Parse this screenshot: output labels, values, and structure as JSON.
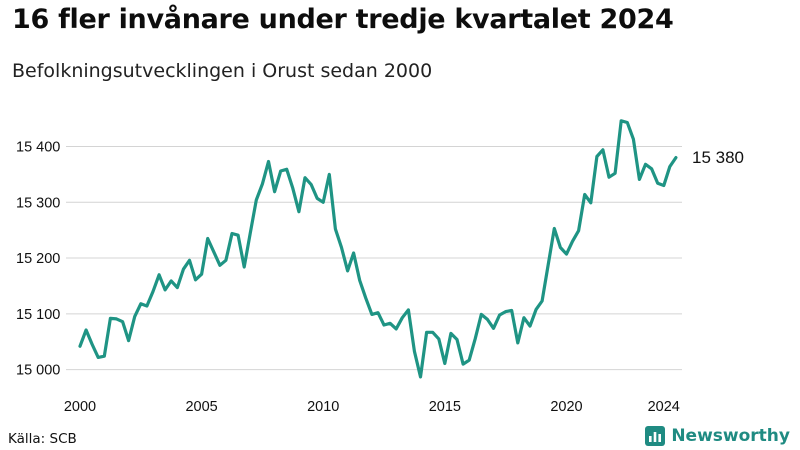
{
  "title": "16 fler invånare under tredje kvartalet 2024",
  "subtitle": "Befolkningsutvecklingen i Orust sedan 2000",
  "source": "Källa: SCB",
  "brand": {
    "name": "Newsworthy",
    "icon": "bar-chart-logo-icon",
    "color": "#1f8b82"
  },
  "chart_data": {
    "type": "line",
    "title": "16 fler invånare under tredje kvartalet 2024",
    "subtitle": "Befolkningsutvecklingen i Orust sedan 2000",
    "xlabel": "",
    "ylabel": "",
    "xlim": [
      2000,
      2024.75
    ],
    "ylim": [
      14985,
      15460
    ],
    "grid": true,
    "line_color": "#1f9484",
    "x_ticks": [
      {
        "value": 2000,
        "label": "2000"
      },
      {
        "value": 2005,
        "label": "2005"
      },
      {
        "value": 2010,
        "label": "2010"
      },
      {
        "value": 2015,
        "label": "2015"
      },
      {
        "value": 2020,
        "label": "2020"
      },
      {
        "value": 2024,
        "label": "2024"
      }
    ],
    "y_ticks": [
      {
        "value": 15000,
        "label": "15 000"
      },
      {
        "value": 15100,
        "label": "15 100"
      },
      {
        "value": 15200,
        "label": "15 200"
      },
      {
        "value": 15300,
        "label": "15 300"
      },
      {
        "value": 15400,
        "label": "15 400"
      }
    ],
    "end_label": "15 380",
    "series": [
      {
        "x": [
          2000,
          2000.25,
          2000.5,
          2000.75,
          2001,
          2001.25,
          2001.5,
          2001.75,
          2002,
          2002.25,
          2002.5,
          2002.75,
          2003,
          2003.25,
          2003.5,
          2003.75,
          2004,
          2004.25,
          2004.5,
          2004.75,
          2005,
          2005.25,
          2005.5,
          2005.75,
          2006,
          2006.25,
          2006.5,
          2006.75,
          2007,
          2007.25,
          2007.5,
          2007.75,
          2008,
          2008.25,
          2008.5,
          2008.75,
          2009,
          2009.25,
          2009.5,
          2009.75,
          2010,
          2010.25,
          2010.5,
          2010.75,
          2011,
          2011.25,
          2011.5,
          2011.75,
          2012,
          2012.25,
          2012.5,
          2012.75,
          2013,
          2013.25,
          2013.5,
          2013.75,
          2014,
          2014.25,
          2014.5,
          2014.75,
          2015,
          2015.25,
          2015.5,
          2015.75,
          2016,
          2016.25,
          2016.5,
          2016.75,
          2017,
          2017.25,
          2017.5,
          2017.75,
          2018,
          2018.25,
          2018.5,
          2018.75,
          2019,
          2019.25,
          2019.5,
          2019.75,
          2020,
          2020.25,
          2020.5,
          2020.75,
          2021,
          2021.25,
          2021.5,
          2021.75,
          2022,
          2022.25,
          2022.5,
          2022.75,
          2023,
          2023.25,
          2023.5,
          2023.75,
          2024,
          2024.25,
          2024.5
        ],
        "values": [
          15042,
          15071,
          15045,
          15022,
          15024,
          15092,
          15091,
          15086,
          15052,
          15095,
          15118,
          15114,
          15140,
          15170,
          15143,
          15159,
          15147,
          15180,
          15196,
          15161,
          15171,
          15235,
          15211,
          15187,
          15196,
          15244,
          15241,
          15184,
          15245,
          15304,
          15333,
          15373,
          15319,
          15356,
          15359,
          15325,
          15283,
          15344,
          15332,
          15307,
          15300,
          15350,
          15252,
          15219,
          15177,
          15209,
          15160,
          15128,
          15099,
          15102,
          15080,
          15083,
          15073,
          15093,
          15107,
          15033,
          14987,
          15067,
          15067,
          15055,
          15011,
          15065,
          15054,
          15010,
          15017,
          15056,
          15099,
          15090,
          15074,
          15098,
          15104,
          15106,
          15048,
          15093,
          15078,
          15108,
          15123,
          15188,
          15253,
          15219,
          15207,
          15230,
          15249,
          15314,
          15299,
          15382,
          15394,
          15345,
          15352,
          15446,
          15443,
          15413,
          15341,
          15368,
          15360,
          15334,
          15330,
          15364,
          15380
        ]
      }
    ]
  }
}
